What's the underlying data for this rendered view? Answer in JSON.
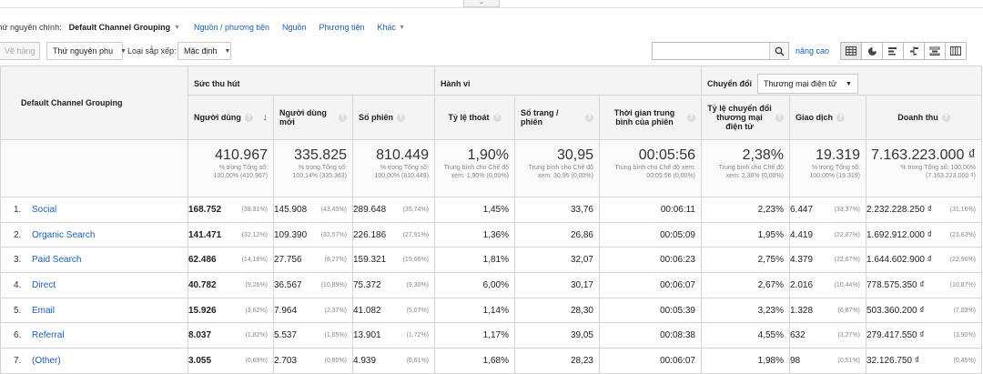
{
  "dims": {
    "label": "Thứ nguyên chính:",
    "primary": "Default Channel Grouping",
    "links": [
      "Nguồn / phương tiện",
      "Nguồn",
      "Phương tiện",
      "Khác"
    ]
  },
  "toolbar": {
    "plot_rows": "Vẽ hàng",
    "secondary_dim": "Thứ nguyên phụ",
    "sort_label": "Loại sắp xếp:",
    "sort_value": "Mặc định",
    "advanced": "nâng cao"
  },
  "table": {
    "dim_header": "Default Channel Grouping",
    "groups": {
      "acquisition": "Sức thu hút",
      "behavior": "Hành vi",
      "conversions": "Chuyển đổi",
      "conversions_select": "Thương mại điện tử"
    },
    "columns": [
      "Người dùng",
      "Người dùng mới",
      "Số phiên",
      "Tỷ lệ thoát",
      "Số trang / phiên",
      "Thời gian trung bình của phiên",
      "Tỷ lệ chuyển đổi thương mại điện tử",
      "Giao dịch",
      "Doanh thu"
    ],
    "totals": [
      {
        "big": "410.967",
        "sub": "% trong Tổng số: 100,00% (410.967)"
      },
      {
        "big": "335.825",
        "sub": "% trong Tổng số: 100,14% (335.363)"
      },
      {
        "big": "810.449",
        "sub": "% trong Tổng số: 100,00% (810.449)"
      },
      {
        "big": "1,90%",
        "sub": "Trung bình cho Chế độ xem: 1,90% (0,00%)"
      },
      {
        "big": "30,95",
        "sub": "Trung bình cho Chế độ xem: 30,95 (0,00%)"
      },
      {
        "big": "00:05:56",
        "sub": "Trung bình cho Chế độ xem: 00:05:56 (0,00%)"
      },
      {
        "big": "2,38%",
        "sub": "Trung bình cho Chế độ xem: 2,38% (0,00%)"
      },
      {
        "big": "19.319",
        "sub": "% trong Tổng số: 100,00% (19.319)"
      },
      {
        "big": "7.163.223.000 ₫",
        "sub": "% trong Tổng số: 100,00% (7.163.223.000 ₫)"
      }
    ],
    "rows": [
      {
        "idx": "1.",
        "name": "Social",
        "users": "168.752",
        "users_p": "(38,31%)",
        "new": "145.908",
        "new_p": "(43,45%)",
        "sess": "289.648",
        "sess_p": "(35,74%)",
        "bounce": "1,45%",
        "pps": "33,76",
        "dur": "00:06:11",
        "conv": "2,23%",
        "tx": "6.447",
        "tx_p": "(33,37%)",
        "rev": "2.232.228.250 ₫",
        "rev_p": "(31,16%)"
      },
      {
        "idx": "2.",
        "name": "Organic Search",
        "users": "141.471",
        "users_p": "(32,12%)",
        "new": "109.390",
        "new_p": "(32,57%)",
        "sess": "226.186",
        "sess_p": "(27,91%)",
        "bounce": "1,36%",
        "pps": "26,86",
        "dur": "00:05:09",
        "conv": "1,95%",
        "tx": "4.419",
        "tx_p": "(22,87%)",
        "rev": "1.692.912.000 ₫",
        "rev_p": "(23,63%)"
      },
      {
        "idx": "3.",
        "name": "Paid Search",
        "users": "62.486",
        "users_p": "(14,18%)",
        "new": "27.756",
        "new_p": "(8,27%)",
        "sess": "159.321",
        "sess_p": "(19,66%)",
        "bounce": "1,81%",
        "pps": "32,07",
        "dur": "00:06:23",
        "conv": "2,75%",
        "tx": "4.379",
        "tx_p": "(22,67%)",
        "rev": "1.644.602.900 ₫",
        "rev_p": "(22,96%)"
      },
      {
        "idx": "4.",
        "name": "Direct",
        "users": "40.782",
        "users_p": "(9,26%)",
        "new": "36.567",
        "new_p": "(10,89%)",
        "sess": "75.372",
        "sess_p": "(9,30%)",
        "bounce": "6,00%",
        "pps": "30,17",
        "dur": "00:06:07",
        "conv": "2,67%",
        "tx": "2.016",
        "tx_p": "(10,44%)",
        "rev": "778.575.350 ₫",
        "rev_p": "(10,87%)"
      },
      {
        "idx": "5.",
        "name": "Email",
        "users": "15.926",
        "users_p": "(3,62%)",
        "new": "7.964",
        "new_p": "(2,37%)",
        "sess": "41.082",
        "sess_p": "(5,07%)",
        "bounce": "1,14%",
        "pps": "28,30",
        "dur": "00:05:39",
        "conv": "3,23%",
        "tx": "1.328",
        "tx_p": "(6,87%)",
        "rev": "503.360.200 ₫",
        "rev_p": "(7,03%)"
      },
      {
        "idx": "6.",
        "name": "Referral",
        "users": "8.037",
        "users_p": "(1,82%)",
        "new": "5.537",
        "new_p": "(1,65%)",
        "sess": "13.901",
        "sess_p": "(1,72%)",
        "bounce": "1,17%",
        "pps": "39,05",
        "dur": "00:08:38",
        "conv": "4,55%",
        "tx": "632",
        "tx_p": "(3,27%)",
        "rev": "279.417.550 ₫",
        "rev_p": "(3,90%)"
      },
      {
        "idx": "7.",
        "name": "(Other)",
        "users": "3.055",
        "users_p": "(0,69%)",
        "new": "2.703",
        "new_p": "(0,80%)",
        "sess": "4.939",
        "sess_p": "(0,61%)",
        "bounce": "1,68%",
        "pps": "28,23",
        "dur": "00:06:07",
        "conv": "1,98%",
        "tx": "98",
        "tx_p": "(0,51%)",
        "rev": "32.126.750 ₫",
        "rev_p": "(0,45%)"
      }
    ]
  }
}
